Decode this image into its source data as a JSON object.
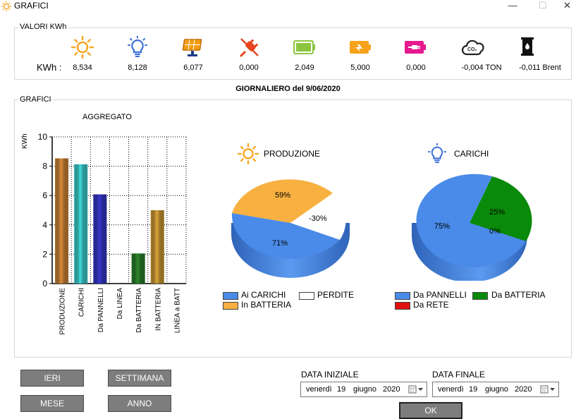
{
  "window": {
    "title": "GRAFICI",
    "minimize": "—",
    "maximize": "☐",
    "close": "✕"
  },
  "valori": {
    "group_label": "VALORI KWh",
    "row_label": "KWh :",
    "items": [
      {
        "icon": "sun-icon",
        "value": "8,534",
        "color": "#f5a623"
      },
      {
        "icon": "bulb-icon",
        "value": "8,128",
        "color": "#3a6fd8"
      },
      {
        "icon": "solar-panel-icon",
        "value": "6,077",
        "color": "#f39c12"
      },
      {
        "icon": "unplug-icon",
        "value": "0,000",
        "color": "#e8451e"
      },
      {
        "icon": "battery-full-icon",
        "value": "2,049",
        "color": "#8cc63f"
      },
      {
        "icon": "battery-charging-icon",
        "value": "5,000",
        "color": "#f7a21b"
      },
      {
        "icon": "battery-plug-icon",
        "value": "0,000",
        "color": "#e6198f"
      },
      {
        "icon": "co2-cloud-icon",
        "value": "-0,004 TON",
        "color": "#222222"
      },
      {
        "icon": "oil-barrel-icon",
        "value": "-0,011 Brent",
        "color": "#111111"
      }
    ]
  },
  "subtitle": "GIORNALIERO del 9/06/2020",
  "grafici": {
    "group_label": "GRAFICI"
  },
  "chart_data": [
    {
      "type": "bar",
      "title": "AGGREGATO",
      "ylabel": "KWh",
      "ylim": [
        0,
        10
      ],
      "yticks": [
        "0",
        "2",
        "4",
        "6",
        "8",
        "10"
      ],
      "categories": [
        "PRODUZIONE",
        "CARICHI",
        "Da PANNELLI",
        "Da LINEA",
        "Da BATTERIA",
        "IN BATTERIA",
        "LINEA a BATT"
      ],
      "values": [
        8.534,
        8.128,
        6.077,
        0,
        2.049,
        5.0,
        0
      ],
      "colors": [
        "#e0903a",
        "#40e0e0",
        "#3a3ad8",
        "#888888",
        "#2e8b2e",
        "#e0a838",
        "#888888"
      ],
      "grid": true
    },
    {
      "type": "pie",
      "title": "PRODUZIONE",
      "slices": [
        {
          "label": "71%",
          "value": 71,
          "color": "#4a8ae8"
        },
        {
          "label": "59%",
          "value": 59,
          "color": "#f8b040"
        },
        {
          "label": "-30%",
          "value": -30,
          "color": "#ffffff"
        }
      ],
      "legend": [
        {
          "label": "Ai CARICHI",
          "color": "#4a8ae8"
        },
        {
          "label": "PERDITE",
          "color": "#ffffff"
        },
        {
          "label": "In BATTERIA",
          "color": "#f8b040"
        }
      ]
    },
    {
      "type": "pie",
      "title": "CARICHI",
      "slices": [
        {
          "label": "75%",
          "value": 75,
          "color": "#4a8ae8"
        },
        {
          "label": "25%",
          "value": 25,
          "color": "#0a8a0a"
        },
        {
          "label": "0%",
          "value": 0,
          "color": "#e01010"
        }
      ],
      "legend": [
        {
          "label": "Da PANNELLI",
          "color": "#4a8ae8"
        },
        {
          "label": "Da BATTERIA",
          "color": "#0a8a0a"
        },
        {
          "label": "Da RETE",
          "color": "#e01010"
        }
      ]
    }
  ],
  "buttons": {
    "ieri": "IERI",
    "settimana": "SETTIMANA",
    "mese": "MESE",
    "anno": "ANNO",
    "ok": "OK"
  },
  "date": {
    "start_label": "DATA INIZIALE",
    "end_label": "DATA FINALE",
    "start": {
      "weekday": "venerdì",
      "day": "19",
      "month": "giugno",
      "year": "2020"
    },
    "end": {
      "weekday": "venerdì",
      "day": "19",
      "month": "giugno",
      "year": "2020"
    }
  }
}
